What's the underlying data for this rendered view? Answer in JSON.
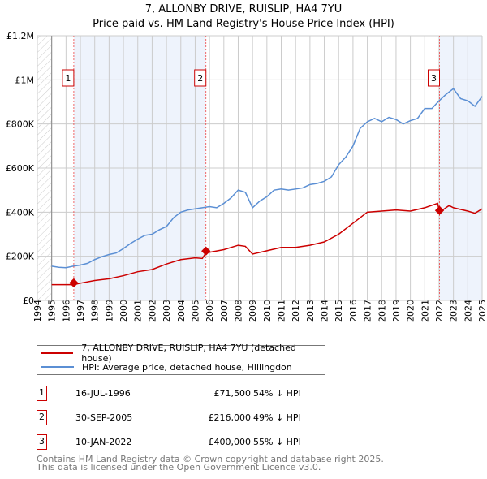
{
  "chart_data": {
    "type": "line",
    "title": "7, ALLONBY DRIVE, RUISLIP, HA4 7YU",
    "subtitle": "Price paid vs. HM Land Registry's House Price Index (HPI)",
    "xlim": [
      1994,
      2025
    ],
    "ylim": [
      0,
      1200000
    ],
    "y_ticks": [
      {
        "v": 0,
        "label": "£0"
      },
      {
        "v": 200000,
        "label": "£200K"
      },
      {
        "v": 400000,
        "label": "£400K"
      },
      {
        "v": 600000,
        "label": "£600K"
      },
      {
        "v": 800000,
        "label": "£800K"
      },
      {
        "v": 1000000,
        "label": "£1M"
      },
      {
        "v": 1200000,
        "label": "£1.2M"
      }
    ],
    "x_ticks": [
      "1994",
      "1995",
      "1996",
      "1997",
      "1998",
      "1999",
      "2000",
      "2001",
      "2002",
      "2003",
      "2004",
      "2005",
      "2006",
      "2007",
      "2008",
      "2009",
      "2010",
      "2011",
      "2012",
      "2013",
      "2014",
      "2015",
      "2016",
      "2017",
      "2018",
      "2019",
      "2020",
      "2021",
      "2022",
      "2023",
      "2024",
      "2025"
    ],
    "grid": true,
    "colors": {
      "property": "#cc0000",
      "hpi": "#5b8fd4",
      "shade": "#eef3fc"
    },
    "series": [
      {
        "name": "7, ALLONBY DRIVE, RUISLIP, HA4 7YU (detached house)",
        "key": "property",
        "x": [
          1995,
          1996.54,
          1997,
          1998,
          1999,
          2000,
          2001,
          2002,
          2003,
          2004,
          2005,
          2005.5,
          2005.75,
          2006,
          2007,
          2008,
          2008.5,
          2009,
          2010,
          2011,
          2012,
          2013,
          2014,
          2015,
          2016,
          2017,
          2018,
          2019,
          2020,
          2021,
          2021.9,
          2022.03,
          2022.7,
          2023,
          2024,
          2024.5,
          2025
        ],
        "y": [
          71500,
          71500,
          78000,
          90000,
          98000,
          112000,
          130000,
          140000,
          165000,
          185000,
          193000,
          190000,
          216000,
          218000,
          230000,
          250000,
          245000,
          210000,
          225000,
          240000,
          240000,
          250000,
          265000,
          300000,
          350000,
          400000,
          405000,
          410000,
          405000,
          420000,
          440000,
          400000,
          430000,
          420000,
          405000,
          395000,
          415000
        ]
      },
      {
        "name": "HPI: Average price, detached house, Hillingdon",
        "key": "hpi",
        "x": [
          1995,
          1995.5,
          1996,
          1996.5,
          1997,
          1997.5,
          1998,
          1998.5,
          1999,
          1999.5,
          2000,
          2000.5,
          2001,
          2001.5,
          2002,
          2002.5,
          2003,
          2003.5,
          2004,
          2004.5,
          2005,
          2005.5,
          2006,
          2006.5,
          2007,
          2007.5,
          2008,
          2008.5,
          2009,
          2009.5,
          2010,
          2010.5,
          2011,
          2011.5,
          2012,
          2012.5,
          2013,
          2013.5,
          2014,
          2014.5,
          2015,
          2015.5,
          2016,
          2016.5,
          2017,
          2017.5,
          2018,
          2018.5,
          2019,
          2019.5,
          2020,
          2020.5,
          2021,
          2021.5,
          2022,
          2022.5,
          2023,
          2023.5,
          2024,
          2024.5,
          2025
        ],
        "y": [
          155000,
          150000,
          148000,
          155000,
          160000,
          168000,
          185000,
          198000,
          208000,
          215000,
          235000,
          258000,
          278000,
          295000,
          300000,
          320000,
          335000,
          375000,
          400000,
          410000,
          415000,
          420000,
          425000,
          420000,
          440000,
          465000,
          500000,
          490000,
          420000,
          450000,
          470000,
          500000,
          505000,
          500000,
          505000,
          510000,
          525000,
          530000,
          540000,
          560000,
          615000,
          650000,
          700000,
          780000,
          810000,
          825000,
          810000,
          830000,
          820000,
          800000,
          815000,
          825000,
          870000,
          870000,
          905000,
          935000,
          960000,
          915000,
          905000,
          880000,
          925000
        ]
      }
    ],
    "sales": [
      {
        "n": "1",
        "x": 1996.54,
        "y": 71500,
        "date": "16-JUL-1996",
        "price": "£71,500",
        "hpi": "54% ↓ HPI"
      },
      {
        "n": "2",
        "x": 2005.75,
        "y": 216000,
        "date": "30-SEP-2005",
        "price": "£216,000",
        "hpi": "49% ↓ HPI"
      },
      {
        "n": "3",
        "x": 2022.03,
        "y": 400000,
        "date": "10-JAN-2022",
        "price": "£400,000",
        "hpi": "55% ↓ HPI"
      }
    ],
    "legend_placement": "below"
  },
  "footer": [
    "Contains HM Land Registry data © Crown copyright and database right 2025.",
    "This data is licensed under the Open Government Licence v3.0."
  ]
}
